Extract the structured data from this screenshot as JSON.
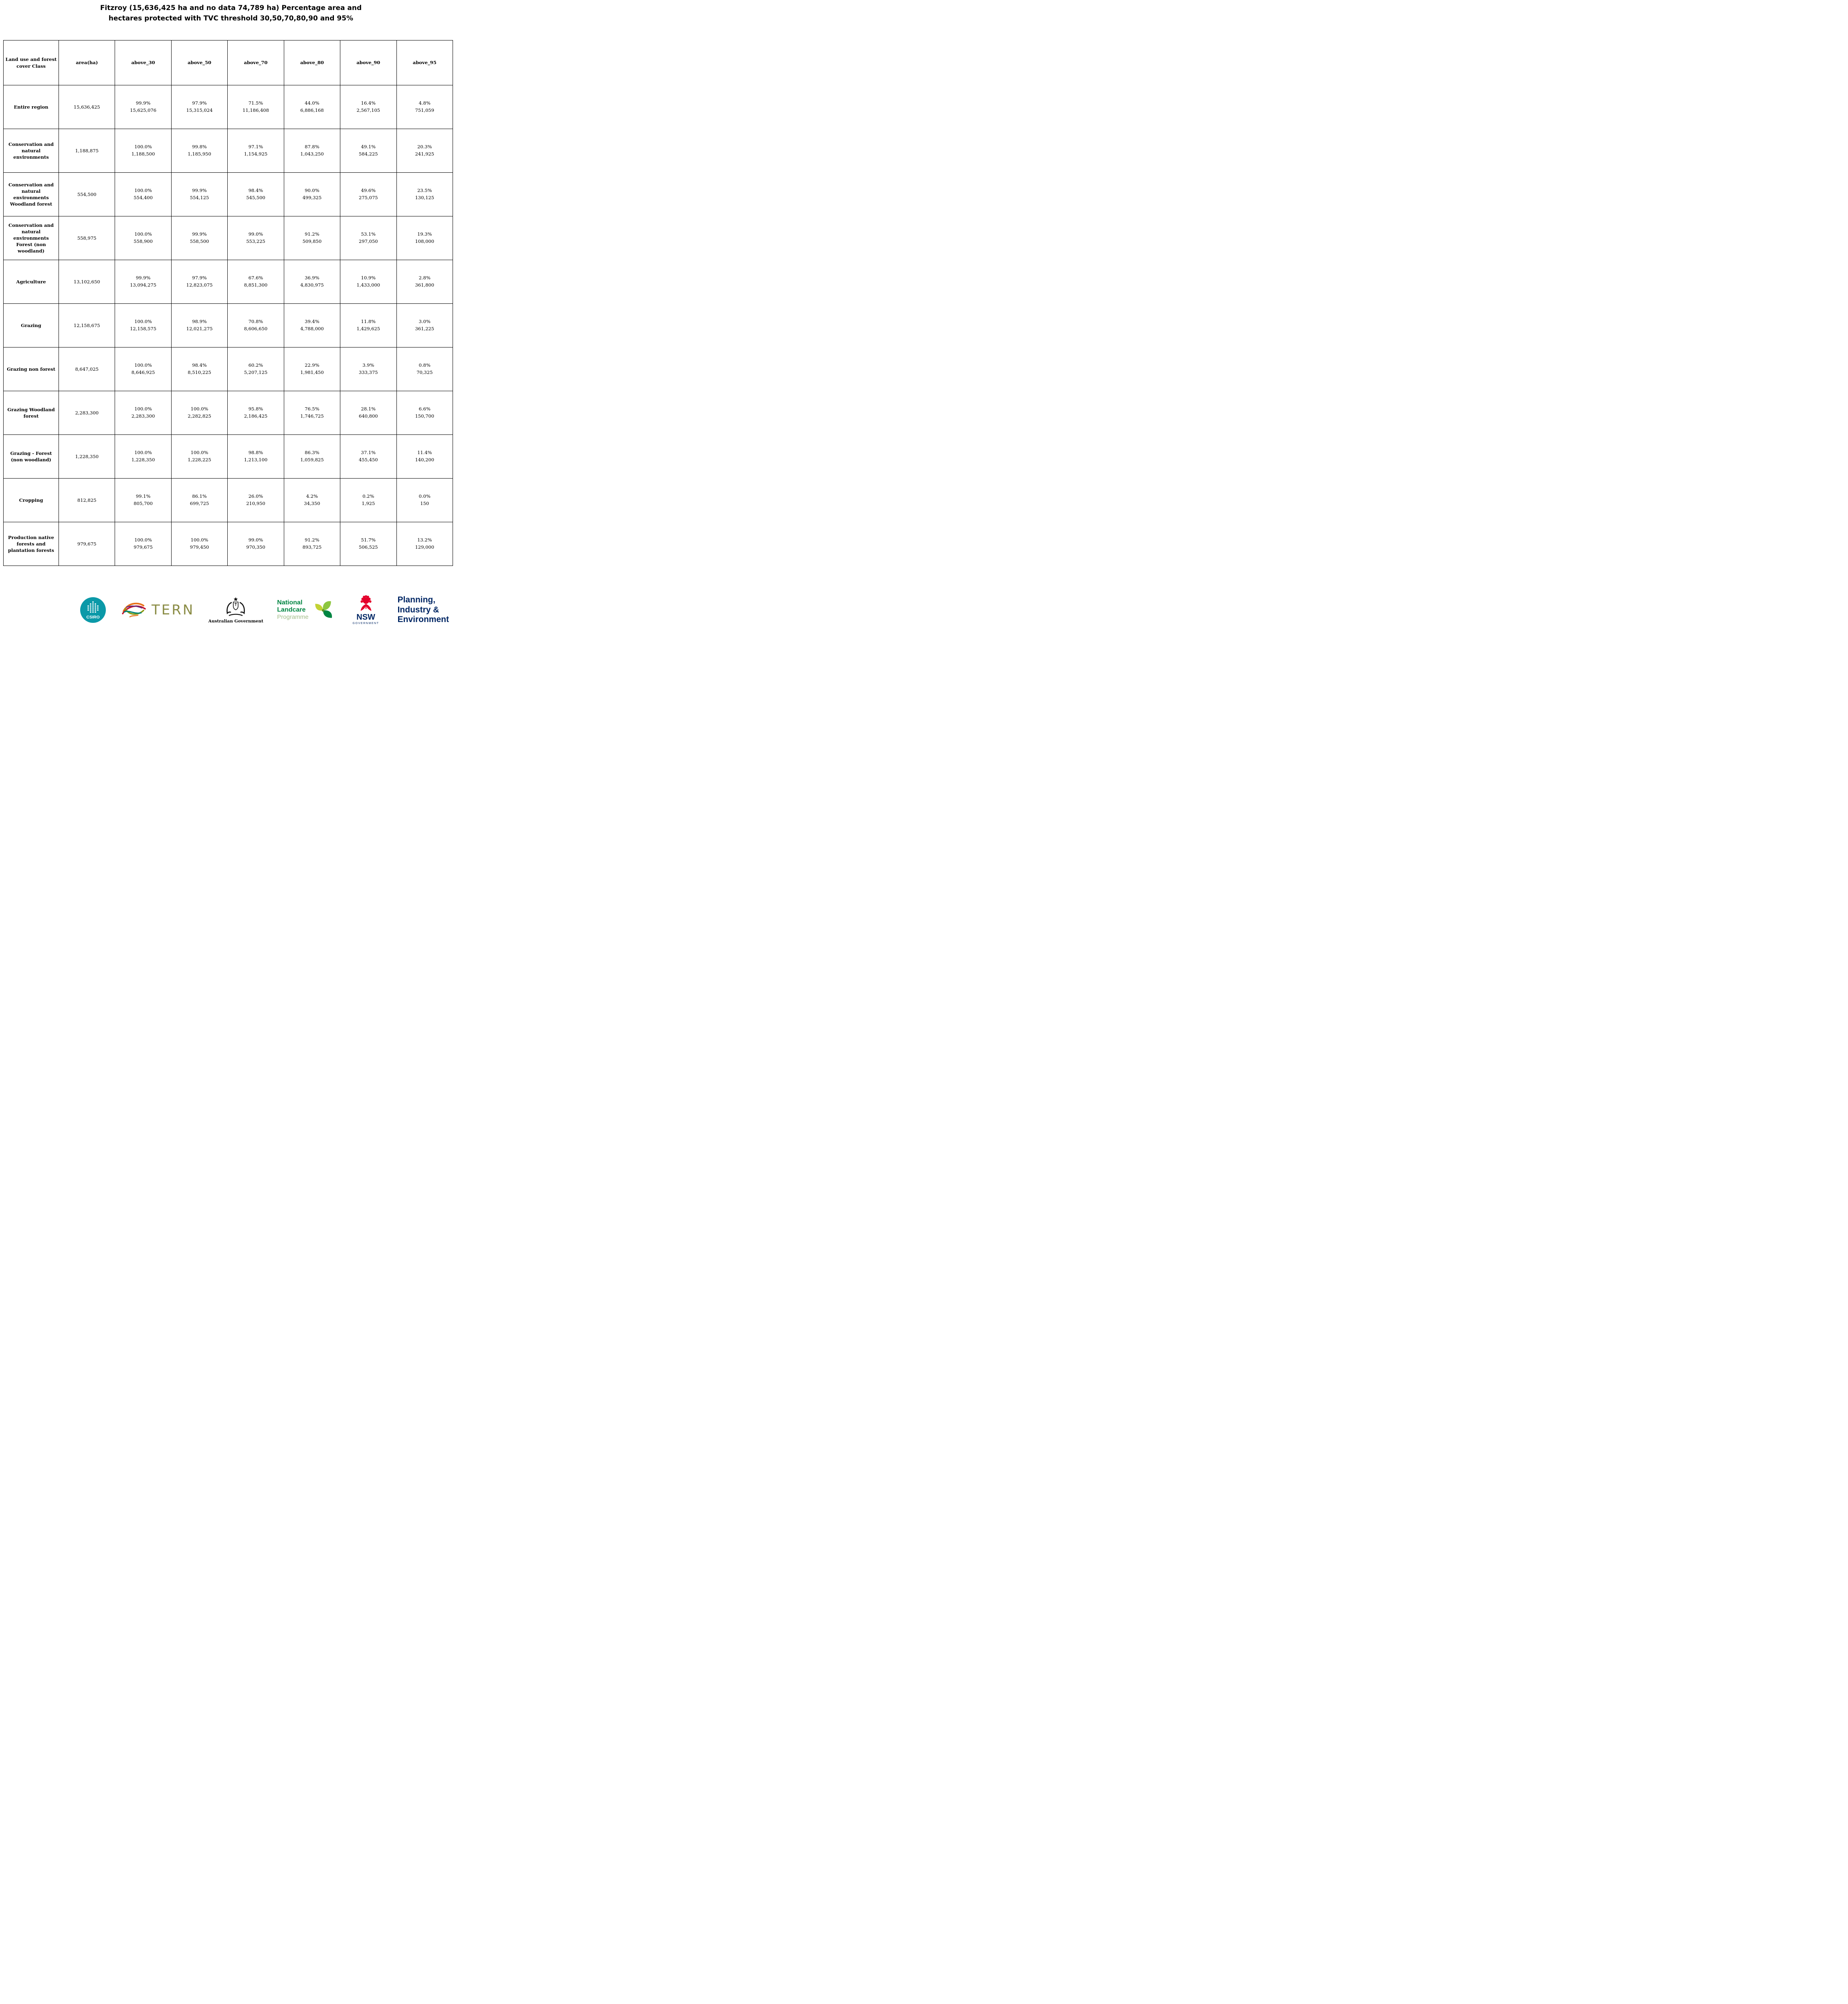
{
  "title": "Fitzroy (15,636,425 ha and no data 74,789 ha) Percentage area and\nhectares protected with TVC threshold 30,50,70,80,90 and 95%",
  "chart_data": {
    "type": "table",
    "title": "Fitzroy (15,636,425 ha and no data 74,789 ha) Percentage area and hectares protected with TVC threshold 30,50,70,80,90 and 95%",
    "columns": [
      "Land use and forest cover Class",
      "area(ha)",
      "above_30",
      "above_50",
      "above_70",
      "above_80",
      "above_90",
      "above_95"
    ],
    "rows": [
      {
        "label": "Entire region",
        "area": "15,636,425",
        "values": [
          {
            "pct": "99.9%",
            "ha": "15,625,076"
          },
          {
            "pct": "97.9%",
            "ha": "15,315,024"
          },
          {
            "pct": "71.5%",
            "ha": "11,186,408"
          },
          {
            "pct": "44.0%",
            "ha": "6,886,168"
          },
          {
            "pct": "16.4%",
            "ha": "2,567,105"
          },
          {
            "pct": "4.8%",
            "ha": "751,059"
          }
        ]
      },
      {
        "label": "Conservation and natural environments",
        "area": "1,188,875",
        "values": [
          {
            "pct": "100.0%",
            "ha": "1,188,500"
          },
          {
            "pct": "99.8%",
            "ha": "1,185,950"
          },
          {
            "pct": "97.1%",
            "ha": "1,154,925"
          },
          {
            "pct": "87.8%",
            "ha": "1,043,250"
          },
          {
            "pct": "49.1%",
            "ha": "584,225"
          },
          {
            "pct": "20.3%",
            "ha": "241,925"
          }
        ]
      },
      {
        "label": "Conservation and natural environments Woodland forest",
        "area": "554,500",
        "values": [
          {
            "pct": "100.0%",
            "ha": "554,400"
          },
          {
            "pct": "99.9%",
            "ha": "554,125"
          },
          {
            "pct": "98.4%",
            "ha": "545,500"
          },
          {
            "pct": "90.0%",
            "ha": "499,325"
          },
          {
            "pct": "49.6%",
            "ha": "275,075"
          },
          {
            "pct": "23.5%",
            "ha": "130,125"
          }
        ]
      },
      {
        "label": "Conservation and natural environments Forest (non woodland)",
        "area": "558,975",
        "values": [
          {
            "pct": "100.0%",
            "ha": "558,900"
          },
          {
            "pct": "99.9%",
            "ha": "558,500"
          },
          {
            "pct": "99.0%",
            "ha": "553,225"
          },
          {
            "pct": "91.2%",
            "ha": "509,850"
          },
          {
            "pct": "53.1%",
            "ha": "297,050"
          },
          {
            "pct": "19.3%",
            "ha": "108,000"
          }
        ]
      },
      {
        "label": "Agriculture",
        "area": "13,102,650",
        "values": [
          {
            "pct": "99.9%",
            "ha": "13,094,275"
          },
          {
            "pct": "97.9%",
            "ha": "12,823,075"
          },
          {
            "pct": "67.6%",
            "ha": "8,851,300"
          },
          {
            "pct": "36.9%",
            "ha": "4,830,975"
          },
          {
            "pct": "10.9%",
            "ha": "1,433,000"
          },
          {
            "pct": "2.8%",
            "ha": "361,800"
          }
        ]
      },
      {
        "label": "Grazing",
        "area": "12,158,675",
        "values": [
          {
            "pct": "100.0%",
            "ha": "12,158,575"
          },
          {
            "pct": "98.9%",
            "ha": "12,021,275"
          },
          {
            "pct": "70.8%",
            "ha": "8,606,650"
          },
          {
            "pct": "39.4%",
            "ha": "4,788,000"
          },
          {
            "pct": "11.8%",
            "ha": "1,429,625"
          },
          {
            "pct": "3.0%",
            "ha": "361,225"
          }
        ]
      },
      {
        "label": "Grazing non forest",
        "area": "8,647,025",
        "values": [
          {
            "pct": "100.0%",
            "ha": "8,646,925"
          },
          {
            "pct": "98.4%",
            "ha": "8,510,225"
          },
          {
            "pct": "60.2%",
            "ha": "5,207,125"
          },
          {
            "pct": "22.9%",
            "ha": "1,981,450"
          },
          {
            "pct": "3.9%",
            "ha": "333,375"
          },
          {
            "pct": "0.8%",
            "ha": "70,325"
          }
        ]
      },
      {
        "label": "Grazing Woodland forest",
        "area": "2,283,300",
        "values": [
          {
            "pct": "100.0%",
            "ha": "2,283,300"
          },
          {
            "pct": "100.0%",
            "ha": "2,282,825"
          },
          {
            "pct": "95.8%",
            "ha": "2,186,425"
          },
          {
            "pct": "76.5%",
            "ha": "1,746,725"
          },
          {
            "pct": "28.1%",
            "ha": "640,800"
          },
          {
            "pct": "6.6%",
            "ha": "150,700"
          }
        ]
      },
      {
        "label": "Grazing - Forest (non woodland)",
        "area": "1,228,350",
        "values": [
          {
            "pct": "100.0%",
            "ha": "1,228,350"
          },
          {
            "pct": "100.0%",
            "ha": "1,228,225"
          },
          {
            "pct": "98.8%",
            "ha": "1,213,100"
          },
          {
            "pct": "86.3%",
            "ha": "1,059,825"
          },
          {
            "pct": "37.1%",
            "ha": "455,450"
          },
          {
            "pct": "11.4%",
            "ha": "140,200"
          }
        ]
      },
      {
        "label": "Cropping",
        "area": "812,825",
        "values": [
          {
            "pct": "99.1%",
            "ha": "805,700"
          },
          {
            "pct": "86.1%",
            "ha": "699,725"
          },
          {
            "pct": "26.0%",
            "ha": "210,950"
          },
          {
            "pct": "4.2%",
            "ha": "34,350"
          },
          {
            "pct": "0.2%",
            "ha": "1,925"
          },
          {
            "pct": "0.0%",
            "ha": "150"
          }
        ]
      },
      {
        "label": "Production native forests and plantation forests",
        "area": "979,675",
        "values": [
          {
            "pct": "100.0%",
            "ha": "979,675"
          },
          {
            "pct": "100.0%",
            "ha": "979,450"
          },
          {
            "pct": "99.0%",
            "ha": "970,350"
          },
          {
            "pct": "91.2%",
            "ha": "893,725"
          },
          {
            "pct": "51.7%",
            "ha": "506,525"
          },
          {
            "pct": "13.2%",
            "ha": "129,000"
          }
        ]
      }
    ]
  },
  "footer": {
    "csiro": {
      "label": "CSIRO"
    },
    "tern": {
      "label": "TERN"
    },
    "australian_government": {
      "label": "Australian Government"
    },
    "landcare": {
      "line1": "National",
      "line2": "Landcare",
      "line3": "Programme"
    },
    "nsw": {
      "label": "NSW",
      "sub": "GOVERNMENT"
    },
    "planning": {
      "line1": "Planning,",
      "line2": "Industry &",
      "line3": "Environment"
    }
  },
  "colors": {
    "csiro_teal": "#0b99a8",
    "tern_olive": "#8a8c45",
    "landcare_green": "#008542",
    "landcare_sage": "#a3bd8a",
    "nsw_red": "#e4002b",
    "nsw_navy": "#002664",
    "table_border": "#000000"
  }
}
